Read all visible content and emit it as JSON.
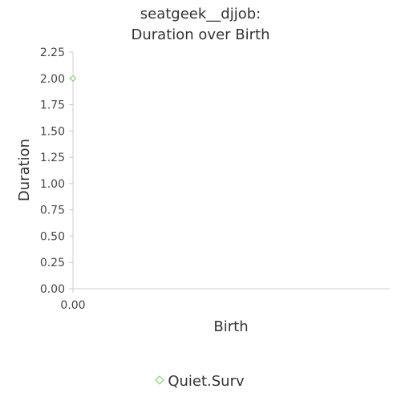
{
  "chart_data": {
    "type": "scatter",
    "title_lines": [
      "seatgeek__djjob:",
      "Duration over Birth"
    ],
    "xlabel": "Birth",
    "ylabel": "Duration",
    "x_ticks": [
      "0.00"
    ],
    "y_ticks": [
      "0.00",
      "0.25",
      "0.50",
      "0.75",
      "1.00",
      "1.25",
      "1.50",
      "1.75",
      "2.00",
      "2.25"
    ],
    "xlim": [
      0,
      1
    ],
    "ylim": [
      0,
      2.25
    ],
    "grid": false,
    "legend_position": "bottom",
    "series": [
      {
        "name": "Quiet.Surv",
        "color": "#7ac36a",
        "marker": "diamond-open",
        "points": [
          {
            "x": 0.0,
            "y": 2.0
          }
        ]
      }
    ]
  }
}
